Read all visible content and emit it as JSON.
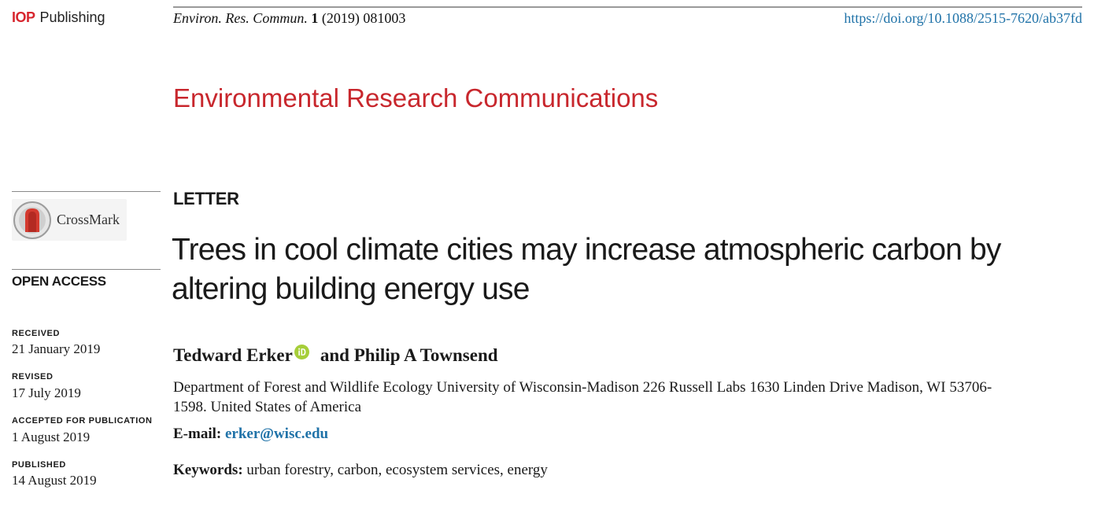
{
  "header": {
    "publisher_mark": "IOP",
    "publisher_name": "Publishing",
    "citation_journal": "Environ. Res. Commun.",
    "citation_volume": "1",
    "citation_rest": "(2019) 081003",
    "doi": "https://doi.org/10.1088/2515-7620/ab37fd"
  },
  "journal_name": "Environmental Research Communications",
  "sidebar": {
    "crossmark_label": "CrossMark",
    "open_access": "OPEN ACCESS",
    "dates": [
      {
        "label": "RECEIVED",
        "value": "21 January 2019"
      },
      {
        "label": "REVISED",
        "value": "17 July 2019"
      },
      {
        "label": "ACCEPTED FOR PUBLICATION",
        "value": "1 August 2019"
      },
      {
        "label": "PUBLISHED",
        "value": "14 August 2019"
      }
    ]
  },
  "article": {
    "type": "LETTER",
    "title_line1": "Trees in cool climate cities may increase atmospheric carbon by",
    "title_line2": "altering building energy use",
    "author1": "Tedward Erker",
    "author2": "and Philip A Townsend",
    "affiliation_line1": "Department of Forest and Wildlife Ecology University of Wisconsin-Madison 226 Russell Labs 1630 Linden Drive Madison, WI 53706-",
    "affiliation_line2": "1598. United States of America",
    "email_label": "E-mail:",
    "email": "erker@wisc.edu",
    "keywords_label": "Keywords:",
    "keywords": "urban forestry, carbon, ecosystem services, energy"
  },
  "colors": {
    "brand_red": "#c8272d",
    "link_blue": "#1f72a8",
    "orcid_green": "#a6ce39"
  },
  "icons": [
    "orcid-icon",
    "crossmark-icon"
  ]
}
